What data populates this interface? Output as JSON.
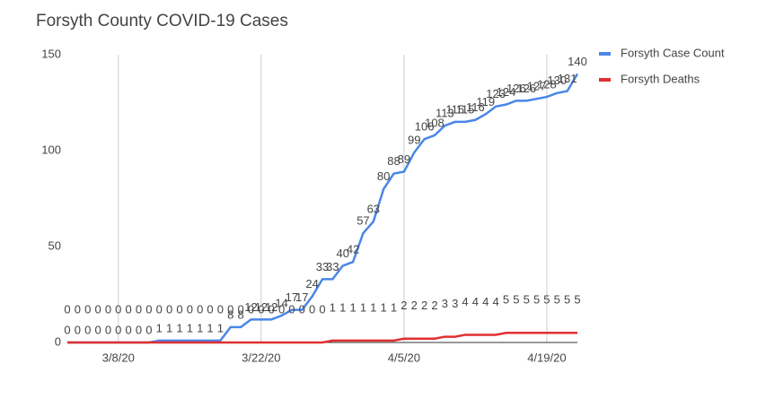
{
  "chart_data": {
    "type": "line",
    "title": "Forsyth County COVID-19 Cases",
    "categories": [
      null,
      null,
      null,
      null,
      null,
      "3/8/20",
      null,
      null,
      null,
      null,
      null,
      null,
      null,
      null,
      null,
      null,
      null,
      null,
      null,
      "3/22/20",
      null,
      null,
      null,
      null,
      null,
      null,
      null,
      null,
      null,
      null,
      null,
      null,
      null,
      "4/5/20",
      null,
      null,
      null,
      null,
      null,
      null,
      null,
      null,
      null,
      null,
      null,
      null,
      null,
      "4/19/20",
      null,
      null,
      null
    ],
    "series": [
      {
        "name": "Forsyth Case Count",
        "color": "#4a86e8",
        "values": [
          0,
          0,
          0,
          0,
          0,
          0,
          0,
          0,
          0,
          1,
          1,
          1,
          1,
          1,
          1,
          1,
          8,
          8,
          12,
          12,
          12,
          14,
          17,
          17,
          24,
          33,
          33,
          40,
          42,
          57,
          63,
          80,
          88,
          89,
          99,
          106,
          108,
          113,
          115,
          115,
          116,
          119,
          123,
          124,
          126,
          126,
          127,
          128,
          130,
          131,
          140
        ]
      },
      {
        "name": "Forsyth Deaths",
        "color": "#e02f2f",
        "values": [
          0,
          0,
          0,
          0,
          0,
          0,
          0,
          0,
          0,
          0,
          0,
          0,
          0,
          0,
          0,
          0,
          0,
          0,
          0,
          0,
          0,
          0,
          0,
          0,
          0,
          0,
          1,
          1,
          1,
          1,
          1,
          1,
          1,
          2,
          2,
          2,
          2,
          3,
          3,
          4,
          4,
          4,
          4,
          5,
          5,
          5,
          5,
          5,
          5,
          5,
          5
        ]
      }
    ],
    "ylim": [
      0,
      150
    ],
    "yticks": [
      0,
      50,
      100,
      150
    ],
    "grid": true,
    "legend": "right"
  }
}
